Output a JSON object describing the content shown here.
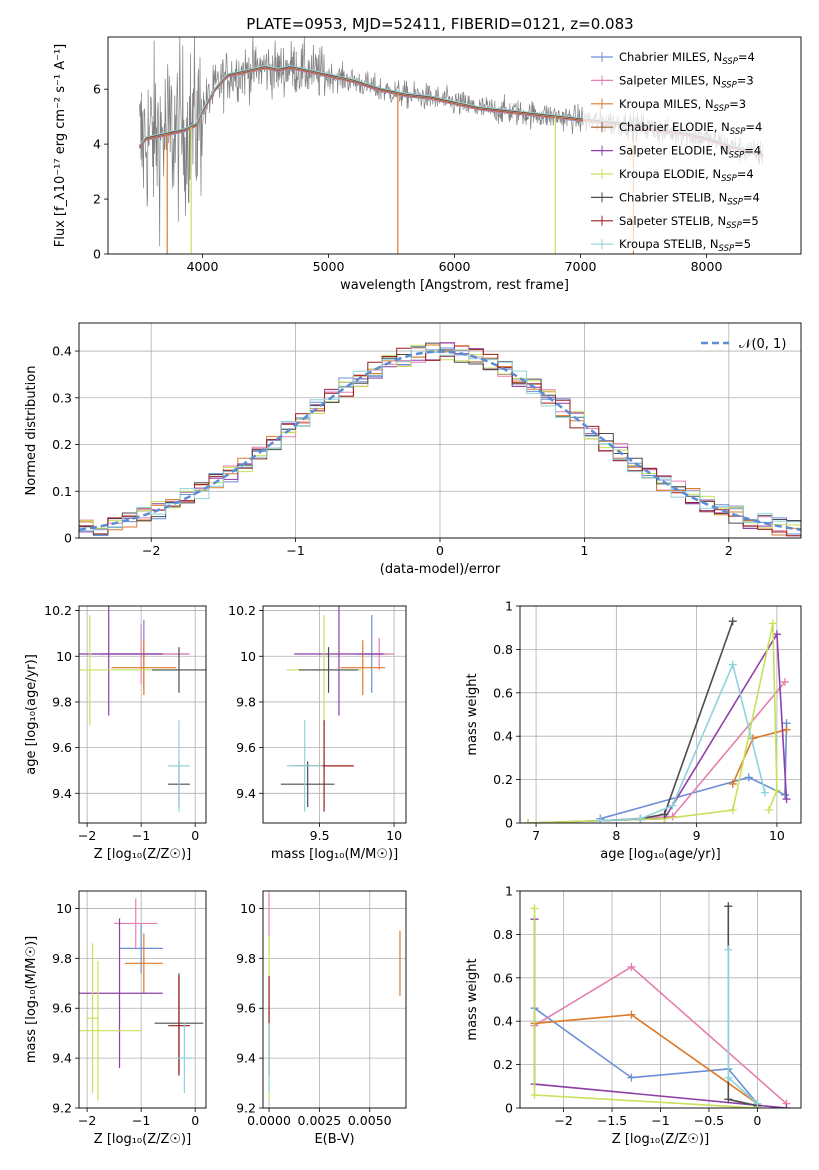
{
  "figure_title": "PLATE=0953, MJD=52411, FIBERID=0121, z=0.083",
  "colors": {
    "Chabrier MILES": "#6b8fd6",
    "Salpeter MILES": "#e57fb0",
    "Kroupa MILES": "#dd7a2a",
    "Chabrier ELODIE": "#a05a2c",
    "Salpeter ELODIE": "#8e3fa8",
    "Kroupa ELODIE": "#c6e25a",
    "Chabrier STELIB": "#4d4d4d",
    "Salpeter STELIB": "#9b1c1c",
    "Kroupa STELIB": "#8fd3d9",
    "gaussian": "#5b8dd6",
    "data": "#808080"
  },
  "chart_data": [
    {
      "id": "spectrum",
      "type": "line",
      "xlabel": "wavelength [Angstrom, rest frame]",
      "ylabel": "Flux [f_λ10⁻¹⁷ erg cm⁻² s⁻¹ A⁻¹]",
      "xlim": [
        3250,
        8750
      ],
      "ylim": [
        0,
        7.9
      ],
      "xticks": [
        4000,
        5000,
        6000,
        7000,
        8000
      ],
      "yticks": [
        0,
        2,
        4,
        6
      ],
      "grid": false,
      "legend_position": "top-right",
      "legend": [
        {
          "model": "Chabrier MILES",
          "nssp": "4"
        },
        {
          "model": "Salpeter MILES",
          "nssp": "3"
        },
        {
          "model": "Kroupa MILES",
          "nssp": "3"
        },
        {
          "model": "Chabrier ELODIE",
          "nssp": "4"
        },
        {
          "model": "Salpeter ELODIE",
          "nssp": "4"
        },
        {
          "model": "Kroupa ELODIE",
          "nssp": "4"
        },
        {
          "model": "Chabrier STELIB",
          "nssp": "4"
        },
        {
          "model": "Salpeter STELIB",
          "nssp": "5"
        },
        {
          "model": "Kroupa STELIB",
          "nssp": "5"
        }
      ],
      "model_curve": {
        "wavelength": [
          3500,
          3550,
          3650,
          3750,
          3850,
          3950,
          4000,
          4100,
          4200,
          4300,
          4400,
          4500,
          4600,
          4700,
          4800,
          4900,
          5000,
          5200,
          5400,
          5600,
          5800,
          6000,
          6200,
          6400,
          6600,
          6800,
          7000,
          7200,
          7400,
          7600,
          7800,
          8000,
          8200,
          8450
        ],
        "flux": [
          3.9,
          4.2,
          4.3,
          4.4,
          4.5,
          4.7,
          5.2,
          6.0,
          6.5,
          6.6,
          6.7,
          6.8,
          6.7,
          6.8,
          6.7,
          6.6,
          6.5,
          6.3,
          6.0,
          5.8,
          5.7,
          5.5,
          5.3,
          5.2,
          5.1,
          5.0,
          4.9,
          4.8,
          4.7,
          4.5,
          4.4,
          4.2,
          3.9,
          3.6
        ]
      },
      "absorption_spikes": [
        {
          "series": "Kroupa MILES",
          "wavelength": 3720
        },
        {
          "series": "Kroupa ELODIE",
          "wavelength": 3910
        },
        {
          "series": "Kroupa MILES",
          "wavelength": 5550
        },
        {
          "series": "Kroupa ELODIE",
          "wavelength": 6800
        },
        {
          "series": "Kroupa MILES",
          "wavelength": 7420
        }
      ]
    },
    {
      "id": "residuals",
      "type": "line",
      "xlabel": "(data-model)/error",
      "ylabel": "Normed distribution",
      "xlim": [
        -2.5,
        2.5
      ],
      "ylim": [
        0,
        0.46
      ],
      "xticks": [
        -2,
        -1,
        0,
        1,
        2
      ],
      "yticks": [
        0.0,
        0.1,
        0.2,
        0.3,
        0.4
      ],
      "grid": true,
      "legend_label": "𝒩(0, 1)",
      "legend_position": "top-right",
      "bin_width": 0.1
    },
    {
      "id": "age_vs_Z",
      "type": "scatter",
      "xlabel": "Z [log₁₀(Z/Z☉)]",
      "ylabel": "age  [log₁₀(age/yr)]",
      "xlim": [
        -2.15,
        0.2
      ],
      "ylim": [
        9.27,
        10.22
      ],
      "xticks": [
        -2,
        -1,
        0
      ],
      "yticks": [
        9.4,
        9.6,
        9.8,
        10.0,
        10.2
      ],
      "grid": true,
      "points": [
        {
          "series": "Chabrier MILES",
          "x": -0.95,
          "y": 10.01,
          "xerr": 0.8,
          "yerr": 0.15
        },
        {
          "series": "Salpeter MILES",
          "x": -1.0,
          "y": 10.01,
          "xerr": 0.9,
          "yerr": 0.13
        },
        {
          "series": "Kroupa MILES",
          "x": -0.95,
          "y": 9.95,
          "xerr": 0.6,
          "yerr": 0.12
        },
        {
          "series": "Salpeter ELODIE",
          "x": -1.6,
          "y": 10.01,
          "xerr": 1.0,
          "yerr": 0.27
        },
        {
          "series": "Kroupa ELODIE",
          "x": -1.95,
          "y": 9.94,
          "xerr": 1.9,
          "yerr": 0.24
        },
        {
          "series": "Chabrier STELIB",
          "x": -0.3,
          "y": 9.94,
          "xerr": 0.5,
          "yerr": 0.1
        },
        {
          "series": "Chabrier STELIB",
          "x": -0.3,
          "y": 9.44,
          "xerr": 0.2,
          "yerr": 0.1
        },
        {
          "series": "Kroupa STELIB",
          "x": -0.3,
          "y": 9.52,
          "xerr": 0.2,
          "yerr": 0.2
        }
      ]
    },
    {
      "id": "age_vs_mass",
      "type": "scatter",
      "xlabel": "mass [log₁₀(M/M☉)]",
      "ylabel": "",
      "xlim": [
        9.12,
        10.08
      ],
      "ylim": [
        9.27,
        10.22
      ],
      "xticks": [
        9.5,
        10.0
      ],
      "yticks": [
        9.4,
        9.6,
        9.8,
        10.0,
        10.2
      ],
      "grid": true,
      "points": [
        {
          "series": "Chabrier MILES",
          "x": 9.85,
          "y": 10.01,
          "xerr": 0.1,
          "yerr": 0.17
        },
        {
          "series": "Salpeter MILES",
          "x": 9.9,
          "y": 10.01,
          "xerr": 0.1,
          "yerr": 0.07
        },
        {
          "series": "Kroupa MILES",
          "x": 9.79,
          "y": 9.95,
          "xerr": 0.15,
          "yerr": 0.12
        },
        {
          "series": "Salpeter ELODIE",
          "x": 9.63,
          "y": 10.01,
          "xerr": 0.3,
          "yerr": 0.27
        },
        {
          "series": "Kroupa ELODIE",
          "x": 9.53,
          "y": 9.94,
          "xerr": 0.25,
          "yerr": 0.24
        },
        {
          "series": "Chabrier STELIB",
          "x": 9.56,
          "y": 9.94,
          "xerr": 0.2,
          "yerr": 0.1
        },
        {
          "series": "Chabrier STELIB",
          "x": 9.42,
          "y": 9.44,
          "xerr": 0.18,
          "yerr": 0.1
        },
        {
          "series": "Salpeter STELIB",
          "x": 9.53,
          "y": 9.52,
          "xerr": 0.2,
          "yerr": 0.2
        },
        {
          "series": "Kroupa STELIB",
          "x": 9.4,
          "y": 9.52,
          "xerr": 0.12,
          "yerr": 0.2
        }
      ]
    },
    {
      "id": "weight_vs_age",
      "type": "line",
      "xlabel": "age  [log₁₀(age/yr)]",
      "ylabel": "mass weight",
      "xlim": [
        6.8,
        10.3
      ],
      "ylim": [
        0,
        1.0
      ],
      "xticks": [
        7,
        8,
        9,
        10
      ],
      "yticks": [
        0.0,
        0.2,
        0.4,
        0.6,
        0.8,
        1.0
      ],
      "grid": true,
      "series": [
        {
          "name": "Chabrier MILES",
          "x": [
            7.8,
            9.65,
            10.1,
            10.12
          ],
          "y": [
            0.02,
            0.21,
            0.13,
            0.46
          ]
        },
        {
          "name": "Salpeter MILES",
          "x": [
            7.8,
            8.7,
            10.1
          ],
          "y": [
            0.01,
            0.03,
            0.65
          ]
        },
        {
          "name": "Kroupa MILES",
          "x": [
            9.45,
            9.7,
            10.12
          ],
          "y": [
            0.18,
            0.39,
            0.43
          ]
        },
        {
          "name": "Salpeter ELODIE",
          "x": [
            6.9,
            8.6,
            10.0,
            10.12
          ],
          "y": [
            0.0,
            0.02,
            0.87,
            0.11
          ]
        },
        {
          "name": "Kroupa ELODIE",
          "x": [
            6.9,
            8.6,
            9.45,
            9.95,
            10.0,
            9.9
          ],
          "y": [
            0.0,
            0.02,
            0.06,
            0.92,
            0.15,
            0.06
          ]
        },
        {
          "name": "Chabrier STELIB",
          "x": [
            7.8,
            8.3,
            8.6,
            9.45
          ],
          "y": [
            0.01,
            0.02,
            0.04,
            0.93
          ]
        },
        {
          "name": "Kroupa STELIB",
          "x": [
            7.8,
            8.3,
            8.7,
            9.45,
            9.85
          ],
          "y": [
            0.01,
            0.02,
            0.08,
            0.73,
            0.14
          ]
        }
      ]
    },
    {
      "id": "mass_vs_Z",
      "type": "scatter",
      "xlabel": "Z [log₁₀(Z/Z☉)]",
      "ylabel": "mass [log₁₀(M/M☉)]",
      "xlim": [
        -2.15,
        0.2
      ],
      "ylim": [
        9.2,
        10.07
      ],
      "xticks": [
        -2,
        -1,
        0
      ],
      "yticks": [
        9.2,
        9.4,
        9.6,
        9.8,
        10.0
      ],
      "grid": true,
      "points": [
        {
          "series": "Chabrier MILES",
          "x": -1.0,
          "y": 9.84,
          "xerr": 0.4,
          "yerr": 0.1
        },
        {
          "series": "Salpeter MILES",
          "x": -1.1,
          "y": 9.94,
          "xerr": 0.4,
          "yerr": 0.1
        },
        {
          "series": "Kroupa MILES",
          "x": -0.95,
          "y": 9.78,
          "xerr": 0.35,
          "yerr": 0.12
        },
        {
          "series": "Salpeter ELODIE",
          "x": -1.4,
          "y": 9.66,
          "xerr": 0.8,
          "yerr": 0.3
        },
        {
          "series": "Kroupa ELODIE",
          "x": -1.8,
          "y": 9.51,
          "xerr": 0.8,
          "yerr": 0.28
        },
        {
          "series": "Kroupa ELODIE",
          "x": -1.9,
          "y": 9.56,
          "xerr": 0.1,
          "yerr": 0.3
        },
        {
          "series": "Chabrier STELIB",
          "x": -0.3,
          "y": 9.54,
          "xerr": 0.45,
          "yerr": 0.2
        },
        {
          "series": "Salpeter STELIB",
          "x": -0.3,
          "y": 9.53,
          "xerr": 0.2,
          "yerr": 0.2
        },
        {
          "series": "Kroupa STELIB",
          "x": -0.2,
          "y": 9.4,
          "xerr": 0.15,
          "yerr": 0.14
        }
      ]
    },
    {
      "id": "mass_vs_EBV",
      "type": "scatter",
      "xlabel": "E(B-V)",
      "ylabel": "",
      "xlim": [
        -0.0003,
        0.0068
      ],
      "ylim": [
        9.2,
        10.07
      ],
      "xticks": [
        0.0,
        0.0025,
        0.005
      ],
      "xtick_labels": [
        "0.0000",
        "0.0025",
        "0.0050"
      ],
      "yticks": [
        9.2,
        9.4,
        9.6,
        9.8,
        10.0
      ],
      "grid": true,
      "points": [
        {
          "series": "Salpeter MILES",
          "x": 0.0,
          "y": 9.94,
          "xerr": 0.0,
          "yerr": 0.12
        },
        {
          "series": "Kroupa ELODIE",
          "x": 0.0,
          "y": 9.56,
          "xerr": 0.0,
          "yerr": 0.33
        },
        {
          "series": "Salpeter STELIB",
          "x": 0.0,
          "y": 9.53,
          "xerr": 0.0,
          "yerr": 0.2
        },
        {
          "series": "Kroupa STELIB",
          "x": 0.0,
          "y": 9.4,
          "xerr": 0.0,
          "yerr": 0.14
        },
        {
          "series": "Kroupa MILES",
          "x": 0.0065,
          "y": 9.78,
          "xerr": 0.0,
          "yerr": 0.13
        }
      ]
    },
    {
      "id": "weight_vs_Z",
      "type": "line",
      "xlabel": "Z [log₁₀(Z/Z☉)]",
      "ylabel": "mass weight",
      "xlim": [
        -2.45,
        0.45
      ],
      "ylim": [
        0,
        1.0
      ],
      "xticks": [
        -2.0,
        -1.5,
        -1.0,
        -0.5,
        0.0
      ],
      "yticks": [
        0.0,
        0.2,
        0.4,
        0.6,
        0.8,
        1.0
      ],
      "grid": true,
      "series": [
        {
          "name": "Chabrier MILES",
          "x": [
            -2.3,
            -1.3,
            -0.3,
            0.0
          ],
          "y": [
            0.46,
            0.14,
            0.18,
            0.02
          ]
        },
        {
          "name": "Salpeter MILES",
          "x": [
            -2.3,
            -1.3,
            0.3
          ],
          "y": [
            0.38,
            0.65,
            0.02
          ]
        },
        {
          "name": "Kroupa MILES",
          "x": [
            -2.3,
            -1.3,
            0.0
          ],
          "y": [
            0.39,
            0.43,
            0.02
          ]
        },
        {
          "name": "Salpeter ELODIE",
          "x": [
            -2.3,
            -2.3,
            0.3
          ],
          "y": [
            0.87,
            0.11,
            0.0
          ]
        },
        {
          "name": "Kroupa ELODIE",
          "x": [
            -2.3,
            -2.3,
            0.0
          ],
          "y": [
            0.92,
            0.06,
            0.0
          ]
        },
        {
          "name": "Chabrier STELIB",
          "x": [
            -0.3,
            -0.3,
            0.0
          ],
          "y": [
            0.93,
            0.04,
            0.01
          ]
        },
        {
          "name": "Kroupa STELIB",
          "x": [
            -0.3,
            -0.3,
            0.0
          ],
          "y": [
            0.73,
            0.14,
            0.02
          ]
        }
      ]
    }
  ]
}
